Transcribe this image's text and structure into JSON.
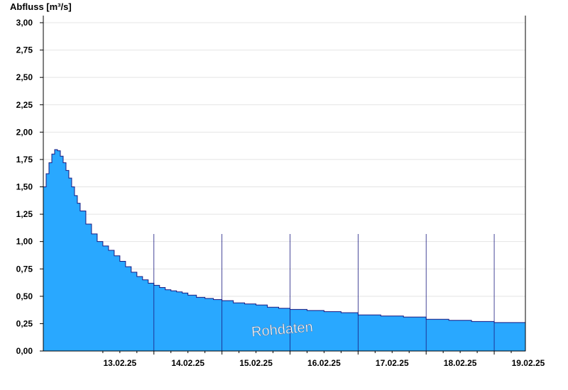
{
  "chart_data": {
    "type": "area",
    "ylabel": "Abfluss [m³/s]",
    "xlabel": "",
    "title": "",
    "watermark": "Rohdaten",
    "ylim": [
      0,
      3
    ],
    "xlim": [
      "2025-02-12T09:00",
      "2025-02-19T11:00"
    ],
    "y_ticks": [
      "0,00",
      "0,25",
      "0,50",
      "0,75",
      "1,00",
      "1,25",
      "1,50",
      "1,75",
      "2,00",
      "2,25",
      "2,50",
      "2,75",
      "3,00"
    ],
    "x_tick_labels": [
      "13.02.25",
      "14.02.25",
      "15.02.25",
      "16.02.25",
      "17.02.25",
      "18.02.25",
      "19.02.25"
    ],
    "grid": true,
    "colors": {
      "fill": "#29a8ff",
      "line": "#1a1a80",
      "grid": "#e4e4e4"
    },
    "series": [
      {
        "x": [
          "2025-02-12T09:00",
          "2025-02-12T10:00",
          "2025-02-12T11:00",
          "2025-02-12T12:00",
          "2025-02-12T13:00",
          "2025-02-12T14:00",
          "2025-02-12T15:00",
          "2025-02-12T16:00",
          "2025-02-12T17:00",
          "2025-02-12T18:00",
          "2025-02-12T19:00",
          "2025-02-12T20:00",
          "2025-02-12T21:00",
          "2025-02-12T22:00",
          "2025-02-13T00:00",
          "2025-02-13T02:00",
          "2025-02-13T04:00",
          "2025-02-13T06:00",
          "2025-02-13T08:00",
          "2025-02-13T10:00",
          "2025-02-13T12:00",
          "2025-02-13T14:00",
          "2025-02-13T16:00",
          "2025-02-13T18:00",
          "2025-02-13T20:00",
          "2025-02-13T22:00",
          "2025-02-14T00:00",
          "2025-02-14T02:00",
          "2025-02-14T04:00",
          "2025-02-14T06:00",
          "2025-02-14T08:00",
          "2025-02-14T10:00",
          "2025-02-14T12:00",
          "2025-02-14T15:00",
          "2025-02-14T18:00",
          "2025-02-14T21:00",
          "2025-02-15T00:00",
          "2025-02-15T04:00",
          "2025-02-15T08:00",
          "2025-02-15T12:00",
          "2025-02-15T16:00",
          "2025-02-15T20:00",
          "2025-02-16T00:00",
          "2025-02-16T06:00",
          "2025-02-16T12:00",
          "2025-02-16T18:00",
          "2025-02-17T00:00",
          "2025-02-17T08:00",
          "2025-02-17T16:00",
          "2025-02-18T00:00",
          "2025-02-18T08:00",
          "2025-02-18T16:00",
          "2025-02-19T00:00",
          "2025-02-19T11:00"
        ],
        "y": [
          1.5,
          1.62,
          1.72,
          1.8,
          1.84,
          1.83,
          1.78,
          1.72,
          1.65,
          1.58,
          1.5,
          1.42,
          1.35,
          1.28,
          1.16,
          1.07,
          1.0,
          0.96,
          0.92,
          0.87,
          0.82,
          0.77,
          0.72,
          0.68,
          0.65,
          0.62,
          0.6,
          0.58,
          0.56,
          0.55,
          0.54,
          0.53,
          0.51,
          0.49,
          0.48,
          0.47,
          0.46,
          0.44,
          0.43,
          0.42,
          0.4,
          0.39,
          0.38,
          0.37,
          0.36,
          0.35,
          0.33,
          0.32,
          0.31,
          0.29,
          0.28,
          0.27,
          0.26,
          0.26
        ]
      }
    ]
  }
}
